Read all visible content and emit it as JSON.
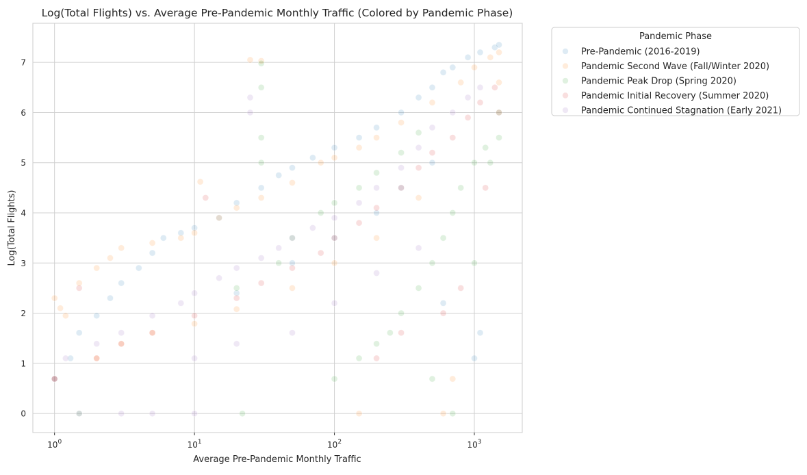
{
  "chart_data": {
    "type": "scatter",
    "title": "Log(Total Flights) vs. Average Pre-Pandemic Monthly Traffic (Colored by Pandemic Phase)",
    "xlabel": "Average Pre-Pandemic Monthly Traffic",
    "ylabel": "Log(Total Flights)",
    "x_scale": "log",
    "xlim": [
      0.7,
      2200
    ],
    "ylim": [
      -0.38,
      7.78
    ],
    "x_ticks": [
      {
        "value": 1,
        "base": "10",
        "exp": "0"
      },
      {
        "value": 10,
        "base": "10",
        "exp": "1"
      },
      {
        "value": 100,
        "base": "10",
        "exp": "2"
      },
      {
        "value": 1000,
        "base": "10",
        "exp": "3"
      }
    ],
    "y_ticks": [
      0,
      1,
      2,
      3,
      4,
      5,
      6,
      7
    ],
    "grid": true,
    "legend": {
      "title": "Pandemic Phase",
      "placement": "outside-top-right"
    },
    "series": [
      {
        "name": "Pre-Pandemic (2016-2019)",
        "color": "#1f77b4",
        "alpha": 0.15,
        "points": [
          [
            1,
            0.69
          ],
          [
            1.3,
            1.1
          ],
          [
            1.5,
            1.61
          ],
          [
            2,
            1.95
          ],
          [
            2.5,
            2.3
          ],
          [
            3,
            2.6
          ],
          [
            4,
            2.9
          ],
          [
            5,
            3.2
          ],
          [
            6,
            3.5
          ],
          [
            8,
            3.6
          ],
          [
            10,
            3.7
          ],
          [
            15,
            3.9
          ],
          [
            20,
            4.2
          ],
          [
            30,
            4.5
          ],
          [
            40,
            4.75
          ],
          [
            50,
            4.9
          ],
          [
            70,
            5.1
          ],
          [
            100,
            5.3
          ],
          [
            150,
            5.5
          ],
          [
            200,
            5.7
          ],
          [
            300,
            6.0
          ],
          [
            400,
            6.3
          ],
          [
            500,
            6.5
          ],
          [
            600,
            6.8
          ],
          [
            700,
            6.9
          ],
          [
            900,
            7.1
          ],
          [
            1100,
            7.2
          ],
          [
            1400,
            7.3
          ],
          [
            1500,
            7.35
          ],
          [
            600,
            2.2
          ],
          [
            1100,
            1.61
          ],
          [
            1000,
            1.1
          ],
          [
            20,
            2.4
          ],
          [
            50,
            3.0
          ],
          [
            100,
            3.5
          ],
          [
            200,
            4.0
          ],
          [
            300,
            4.5
          ],
          [
            500,
            5.0
          ]
        ]
      },
      {
        "name": "Pandemic Second Wave (Fall/Winter 2020)",
        "color": "#ff7f0e",
        "alpha": 0.15,
        "points": [
          [
            1,
            2.3
          ],
          [
            1.1,
            2.1
          ],
          [
            1.2,
            1.95
          ],
          [
            1.5,
            2.6
          ],
          [
            2,
            2.9
          ],
          [
            2.5,
            3.1
          ],
          [
            3,
            3.3
          ],
          [
            5,
            3.4
          ],
          [
            8,
            3.5
          ],
          [
            10,
            3.6
          ],
          [
            11,
            4.62
          ],
          [
            15,
            3.9
          ],
          [
            20,
            4.1
          ],
          [
            25,
            7.05
          ],
          [
            30,
            7.03
          ],
          [
            30,
            4.3
          ],
          [
            50,
            4.6
          ],
          [
            80,
            5.0
          ],
          [
            100,
            5.1
          ],
          [
            150,
            5.3
          ],
          [
            200,
            5.5
          ],
          [
            300,
            5.8
          ],
          [
            500,
            6.2
          ],
          [
            800,
            6.6
          ],
          [
            1000,
            6.9
          ],
          [
            1300,
            7.1
          ],
          [
            1500,
            7.2
          ],
          [
            1500,
            6.6
          ],
          [
            1,
            0.69
          ],
          [
            2,
            1.1
          ],
          [
            3,
            1.39
          ],
          [
            5,
            1.61
          ],
          [
            10,
            1.79
          ],
          [
            20,
            2.08
          ],
          [
            50,
            2.5
          ],
          [
            100,
            3.0
          ],
          [
            200,
            3.5
          ],
          [
            400,
            4.3
          ],
          [
            700,
            0.69
          ],
          [
            600,
            0.0
          ],
          [
            150,
            0.0
          ]
        ]
      },
      {
        "name": "Pandemic Peak Drop (Spring 2020)",
        "color": "#2ca02c",
        "alpha": 0.15,
        "points": [
          [
            1.5,
            0.0
          ],
          [
            22,
            0.0
          ],
          [
            30,
            6.98
          ],
          [
            30,
            6.5
          ],
          [
            30,
            5.5
          ],
          [
            30,
            5.0
          ],
          [
            100,
            0.69
          ],
          [
            150,
            1.1
          ],
          [
            200,
            1.39
          ],
          [
            250,
            1.61
          ],
          [
            300,
            2.0
          ],
          [
            400,
            2.5
          ],
          [
            500,
            3.0
          ],
          [
            600,
            3.5
          ],
          [
            700,
            4.0
          ],
          [
            800,
            4.5
          ],
          [
            1000,
            5.0
          ],
          [
            1200,
            5.3
          ],
          [
            1500,
            5.5
          ],
          [
            1500,
            6.0
          ],
          [
            1300,
            5.0
          ],
          [
            1000,
            3.0
          ],
          [
            700,
            0.0
          ],
          [
            500,
            0.69
          ],
          [
            50,
            3.5
          ],
          [
            80,
            4.0
          ],
          [
            100,
            4.2
          ],
          [
            200,
            4.8
          ],
          [
            300,
            5.2
          ],
          [
            400,
            5.6
          ],
          [
            40,
            3.0
          ],
          [
            20,
            2.5
          ],
          [
            150,
            4.5
          ]
        ]
      },
      {
        "name": "Pandemic Initial Recovery (Summer 2020)",
        "color": "#d62728",
        "alpha": 0.15,
        "points": [
          [
            1,
            0.69
          ],
          [
            2,
            1.1
          ],
          [
            1.5,
            2.5
          ],
          [
            3,
            1.39
          ],
          [
            5,
            1.61
          ],
          [
            10,
            1.95
          ],
          [
            20,
            2.3
          ],
          [
            30,
            2.6
          ],
          [
            50,
            2.9
          ],
          [
            80,
            3.2
          ],
          [
            100,
            3.5
          ],
          [
            150,
            3.8
          ],
          [
            200,
            4.1
          ],
          [
            300,
            4.5
          ],
          [
            400,
            4.9
          ],
          [
            500,
            5.2
          ],
          [
            700,
            5.5
          ],
          [
            900,
            5.9
          ],
          [
            1100,
            6.2
          ],
          [
            1400,
            6.5
          ],
          [
            1500,
            6.0
          ],
          [
            800,
            2.5
          ],
          [
            600,
            2.0
          ],
          [
            300,
            1.61
          ],
          [
            200,
            1.1
          ],
          [
            12,
            4.3
          ],
          [
            1200,
            4.5
          ]
        ]
      },
      {
        "name": "Pandemic Continued Stagnation (Early 2021)",
        "color": "#9467bd",
        "alpha": 0.15,
        "points": [
          [
            1,
            0.69
          ],
          [
            1.5,
            0.0
          ],
          [
            3,
            0.0
          ],
          [
            5,
            0.0
          ],
          [
            10,
            0.0
          ],
          [
            1.2,
            1.1
          ],
          [
            2,
            1.39
          ],
          [
            3,
            1.61
          ],
          [
            5,
            1.95
          ],
          [
            8,
            2.2
          ],
          [
            10,
            2.4
          ],
          [
            15,
            2.7
          ],
          [
            20,
            2.9
          ],
          [
            25,
            6.3
          ],
          [
            25,
            6.0
          ],
          [
            30,
            3.1
          ],
          [
            40,
            3.3
          ],
          [
            50,
            3.5
          ],
          [
            70,
            3.7
          ],
          [
            100,
            3.9
          ],
          [
            150,
            4.2
          ],
          [
            200,
            4.5
          ],
          [
            300,
            4.9
          ],
          [
            400,
            5.3
          ],
          [
            500,
            5.7
          ],
          [
            700,
            6.0
          ],
          [
            900,
            6.3
          ],
          [
            1100,
            6.5
          ],
          [
            10,
            1.1
          ],
          [
            20,
            1.39
          ],
          [
            50,
            1.61
          ],
          [
            100,
            2.2
          ],
          [
            200,
            2.8
          ],
          [
            400,
            3.3
          ]
        ]
      }
    ]
  }
}
